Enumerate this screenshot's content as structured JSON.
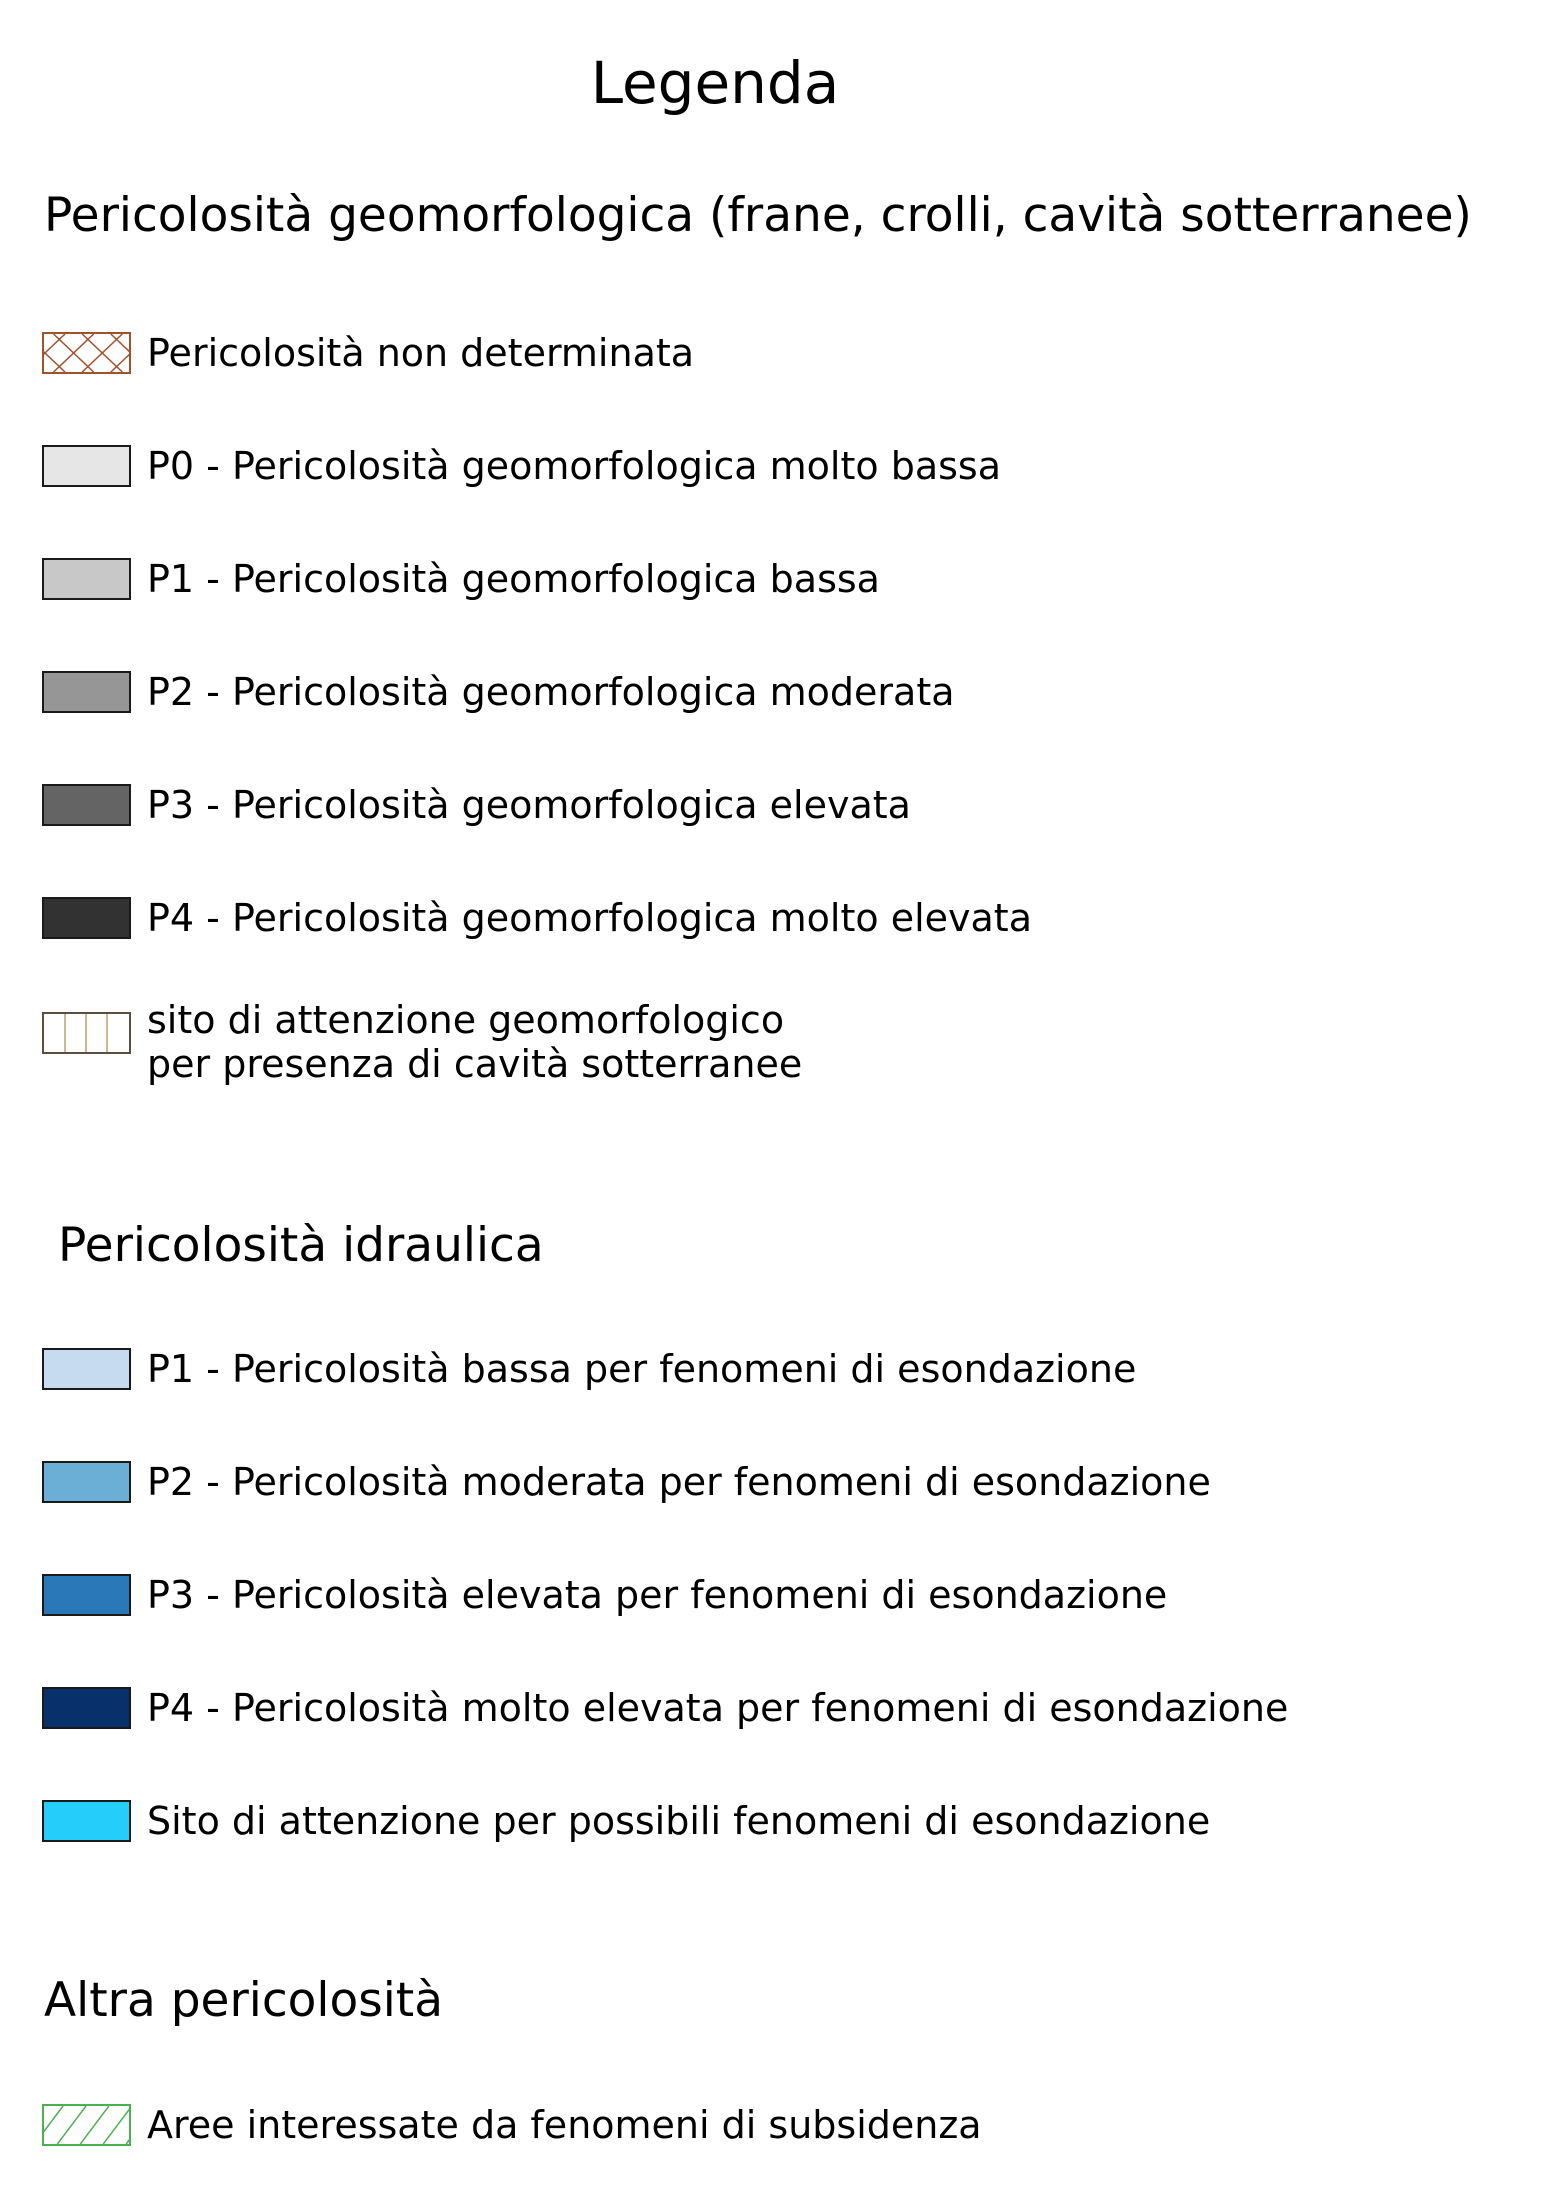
{
  "title": "Legenda",
  "sections": {
    "geomorfologica": {
      "title": "Pericolosità geomorfologica (frane, crolli, cavità sotterranee)",
      "items": [
        {
          "label": "Pericolosità non determinata",
          "pattern": "crosshatch",
          "color": "#a0522d"
        },
        {
          "label": "P0 - Pericolosità geomorfologica molto bassa",
          "fill": "#e6e6e6"
        },
        {
          "label": "P1 - Pericolosità geomorfologica bassa",
          "fill": "#c8c8c8"
        },
        {
          "label": "P2 - Pericolosità geomorfologica moderata",
          "fill": "#969696"
        },
        {
          "label": "P3 - Pericolosità geomorfologica elevata",
          "fill": "#646464"
        },
        {
          "label": "P4 - Pericolosità geomorfologica molto elevata",
          "fill": "#323232"
        },
        {
          "label_line1": "sito di attenzione geomorfologico",
          "label_line2": "per presenza di cavità sotterranee",
          "pattern": "vertical-lines",
          "color": "#c8b48c"
        }
      ]
    },
    "idraulica": {
      "title": "Pericolosità idraulica",
      "items": [
        {
          "label": "P1 - Pericolosità bassa per fenomeni di esondazione",
          "fill": "#c6dbef"
        },
        {
          "label": "P2 - Pericolosità moderata per fenomeni di esondazione",
          "fill": "#6baed6"
        },
        {
          "label": "P3 - Pericolosità elevata per fenomeni di esondazione",
          "fill": "#2b78b8"
        },
        {
          "label": "P4 - Pericolosità molto elevata per fenomeni di esondazione",
          "fill": "#08306b"
        },
        {
          "label": "Sito di attenzione per possibili fenomeni di esondazione",
          "fill": "#25cdfa"
        }
      ]
    },
    "altra": {
      "title": "Altra pericolosità",
      "items": [
        {
          "label": "Aree interessate da fenomeni di subsidenza",
          "pattern": "diagonal-lines",
          "color": "#4caf50"
        }
      ]
    }
  }
}
